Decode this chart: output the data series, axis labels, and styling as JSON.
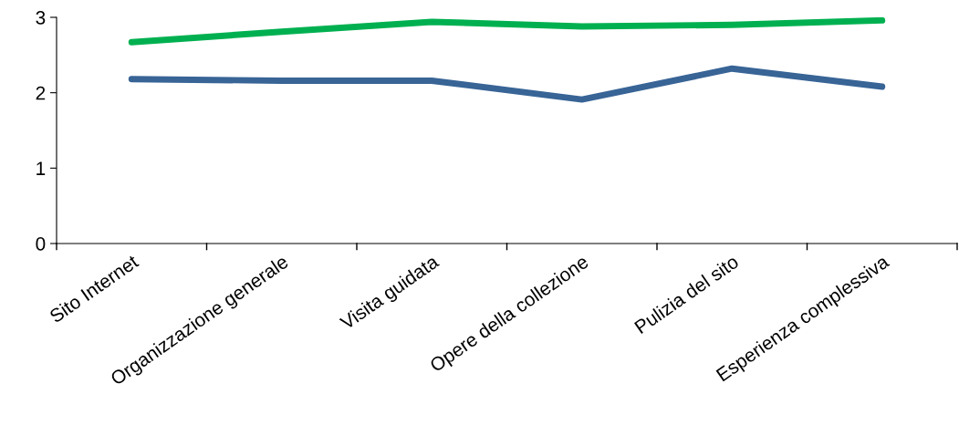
{
  "chart_data": {
    "type": "line",
    "categories": [
      "Sito Internet",
      "Organizzazione generale",
      "Visita guidata",
      "Opere della collezione",
      "Pulizia del sito",
      "Esperienza complessiva"
    ],
    "series": [
      {
        "color": "#00b050",
        "values": [
          2.67,
          2.81,
          2.94,
          2.88,
          2.9,
          2.96
        ]
      },
      {
        "color": "#386496",
        "values": [
          2.18,
          2.16,
          2.16,
          1.91,
          2.32,
          2.08
        ]
      }
    ],
    "ylim": [
      0,
      3
    ],
    "yticks": [
      0,
      1,
      2,
      3
    ],
    "grid": false,
    "legend": false,
    "marker": "none",
    "line_style": "solid"
  }
}
